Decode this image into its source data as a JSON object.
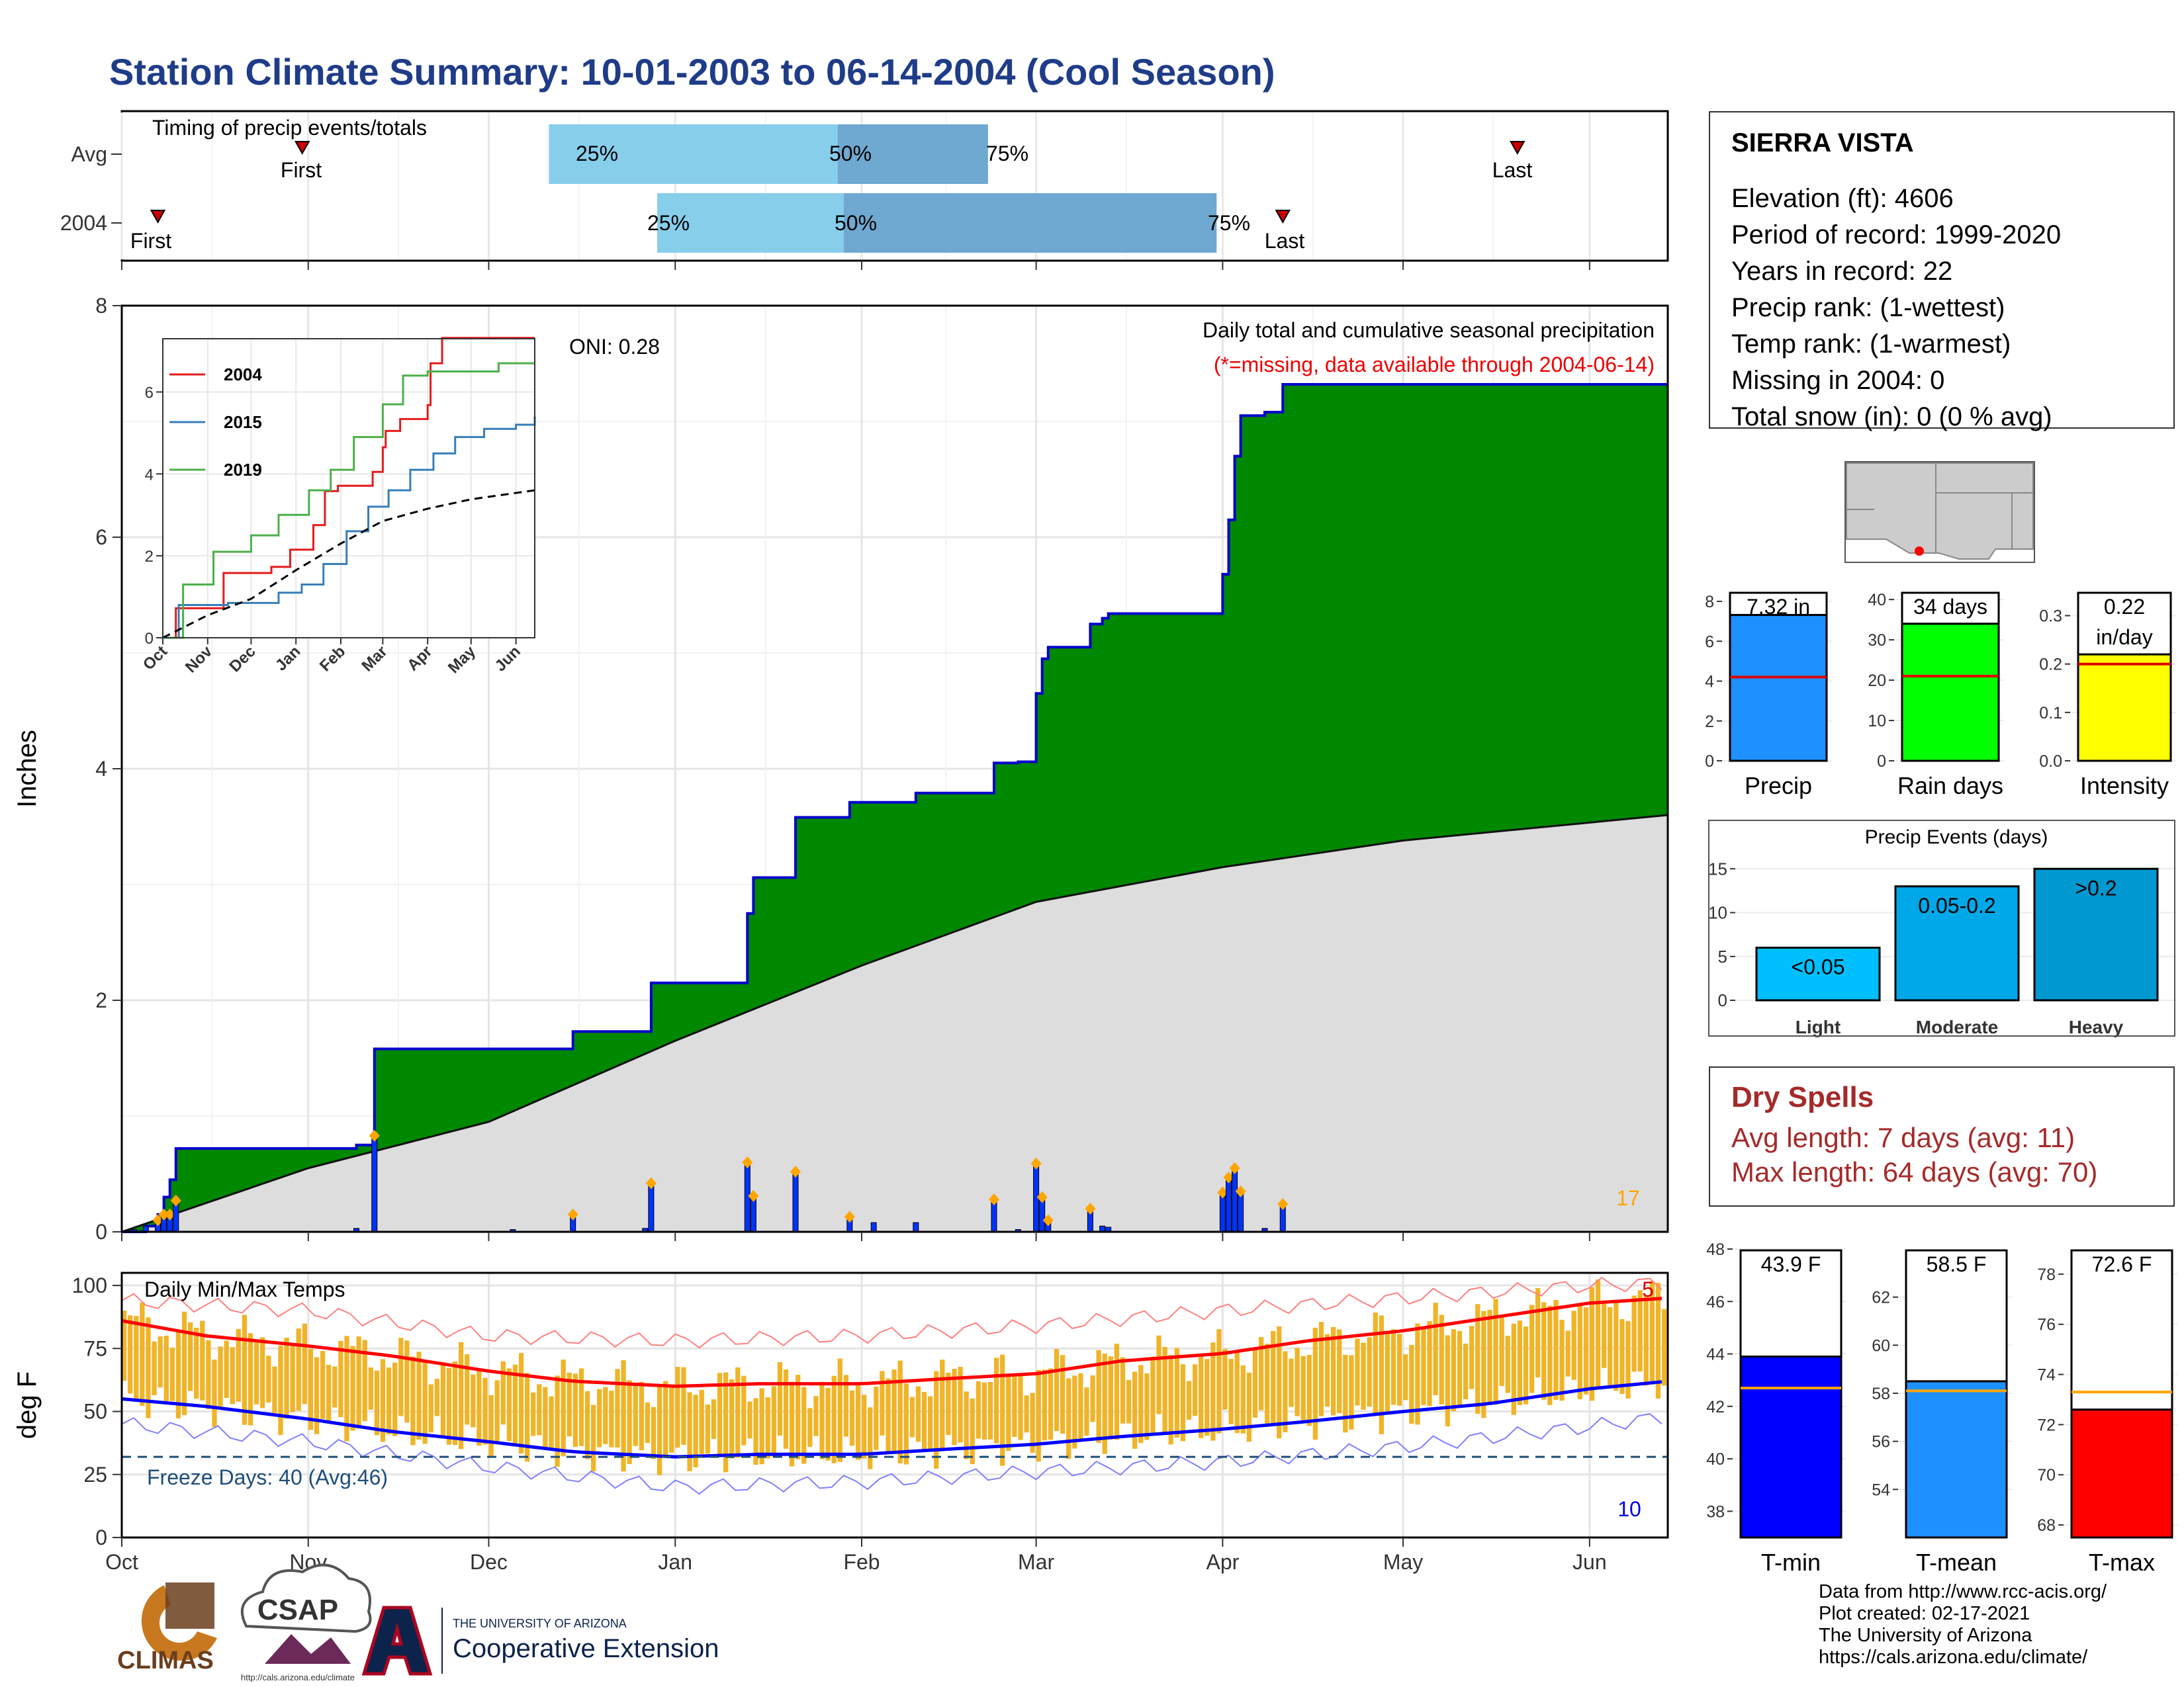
{
  "title": "Station Climate Summary: 10-01-2003 to 06-14-2004 (Cool Season)",
  "colors": {
    "title": "#1f3c88",
    "cumulative_fill": "#008800",
    "cumulative_line": "#0000cc",
    "avg_fill": "#dddddd",
    "bars": "#0033ff",
    "highlight": "#ffa500",
    "tmax": "#ff0000",
    "tmin": "#0000ff",
    "temp_bars": "#f0b428",
    "q_light": "#87ceeb",
    "q_dark": "#6fa8d0"
  },
  "timing": {
    "label": "Timing of precip events/totals",
    "rows": [
      {
        "name": "Avg",
        "first": "First",
        "last": "Last",
        "q25": "25%",
        "q50": "50%",
        "q75": "75%"
      },
      {
        "name": "2004",
        "first": "First",
        "last": "Last",
        "q25": "25%",
        "q50": "50%",
        "q75": "75%"
      }
    ]
  },
  "station": {
    "name": "SIERRA VISTA",
    "lines": [
      "Elevation (ft): 4606",
      "Period of record: 1999-2020",
      "Years in record: 22",
      "Precip rank:  (1-wettest)",
      "Temp rank:  (1-warmest)",
      "Missing in 2004: 0",
      "Total snow (in): 0 (0 % avg)"
    ]
  },
  "main": {
    "oni": "ONI: 0.28",
    "label1": "Daily total and cumulative seasonal precipitation",
    "label2": "(*=missing, data available through 2004-06-14)",
    "ylabel": "Inches",
    "corner_count": "17"
  },
  "temps": {
    "label": "Daily Min/Max Temps",
    "freeze": "Freeze Days: 40 (Avg:46)",
    "ylabel": "deg F",
    "count_top": "5",
    "count_bottom": "10"
  },
  "dry_spells": {
    "title": "Dry Spells",
    "avg": "Avg length: 7 days (avg: 11)",
    "max": "Max length: 64 days (avg: 70)"
  },
  "credits": [
    "Data from http://www.rcc-acis.org/",
    "Plot created: 02-17-2021",
    "The University of Arizona",
    "https://cals.arizona.edu/climate/"
  ],
  "logos": {
    "climas": "CLIMAS",
    "csap": "CSAP",
    "csap_url": "http://cals.arizona.edu/climate",
    "ua_small": "THE UNIVERSITY OF ARIZONA",
    "ua_big": "Cooperative Extension"
  },
  "chart_data": [
    {
      "id": "timing",
      "type": "bar",
      "title": "Timing of precip events/totals",
      "categories": [
        "Avg",
        "2004"
      ],
      "first": [
        "2003-10-31",
        "2003-10-07"
      ],
      "last": [
        "2004-05-20",
        "2004-04-11"
      ],
      "q25": [
        "2003-12-11",
        "2003-12-29"
      ],
      "q50": [
        "2004-01-28",
        "2004-01-29"
      ],
      "q75": [
        "2004-02-22",
        "2004-03-31"
      ]
    },
    {
      "id": "cumulative_precip",
      "type": "area",
      "ylabel": "Inches",
      "ylim": [
        0,
        8
      ],
      "x_ticks": [
        "Oct",
        "Nov",
        "Dec",
        "Jan",
        "Feb",
        "Mar",
        "Apr",
        "May",
        "Jun"
      ],
      "y_ticks": [
        0,
        2,
        4,
        6,
        8
      ],
      "series": [
        {
          "name": "2004",
          "x": [
            "2003-10-01",
            "2003-10-05",
            "2003-10-07",
            "2003-10-08",
            "2003-10-09",
            "2003-10-10",
            "2003-10-15",
            "2003-11-09",
            "2003-11-12",
            "2003-12-05",
            "2003-12-15",
            "2003-12-27",
            "2003-12-28",
            "2004-01-10",
            "2004-01-13",
            "2004-01-14",
            "2004-01-21",
            "2004-01-30",
            "2004-02-03",
            "2004-02-10",
            "2004-02-23",
            "2004-02-27",
            "2004-03-01",
            "2004-03-02",
            "2004-03-03",
            "2004-03-10",
            "2004-03-12",
            "2004-03-13",
            "2004-03-31",
            "2004-04-01",
            "2004-04-02",
            "2004-04-03",
            "2004-04-04",
            "2004-04-05",
            "2004-04-08",
            "2004-04-11",
            "2004-06-14"
          ],
          "y": [
            0,
            0.05,
            0.15,
            0.3,
            0.45,
            0.72,
            0.72,
            0.75,
            1.58,
            1.58,
            1.73,
            1.73,
            2.15,
            2.15,
            2.75,
            3.06,
            3.58,
            3.71,
            3.71,
            3.79,
            4.05,
            4.06,
            4.65,
            4.95,
            5.05,
            5.25,
            5.3,
            5.34,
            5.34,
            5.68,
            6.15,
            6.7,
            7.05,
            7.05,
            7.08,
            7.32,
            7.32
          ]
        },
        {
          "name": "Avg",
          "x": [
            "2003-10-01",
            "2003-11-01",
            "2003-12-01",
            "2004-01-01",
            "2004-02-01",
            "2004-03-01",
            "2004-04-01",
            "2004-05-01",
            "2004-06-14"
          ],
          "y": [
            0,
            0.55,
            0.95,
            1.65,
            2.3,
            2.85,
            3.15,
            3.38,
            3.6
          ]
        },
        {
          "name": "Daily",
          "x": [
            "2003-10-03",
            "2003-10-05",
            "2003-10-07",
            "2003-10-08",
            "2003-10-09",
            "2003-10-10",
            "2003-11-09",
            "2003-11-12",
            "2003-12-05",
            "2003-12-15",
            "2003-12-27",
            "2003-12-28",
            "2004-01-13",
            "2004-01-14",
            "2004-01-21",
            "2004-01-30",
            "2004-02-03",
            "2004-02-10",
            "2004-02-23",
            "2004-02-27",
            "2004-03-01",
            "2004-03-02",
            "2004-03-03",
            "2004-03-10",
            "2004-03-12",
            "2004-03-13",
            "2004-04-01",
            "2004-04-02",
            "2004-04-03",
            "2004-04-04",
            "2004-04-08",
            "2004-04-11"
          ],
          "y": [
            0.02,
            0.05,
            0.1,
            0.15,
            0.15,
            0.27,
            0.03,
            0.83,
            0.02,
            0.15,
            0.03,
            0.42,
            0.6,
            0.31,
            0.52,
            0.13,
            0.08,
            0.08,
            0.28,
            0.02,
            0.59,
            0.3,
            0.1,
            0.2,
            0.05,
            0.04,
            0.34,
            0.47,
            0.55,
            0.35,
            0.03,
            0.24
          ]
        }
      ]
    },
    {
      "id": "inset",
      "type": "line",
      "x_ticks": [
        "Oct",
        "Nov",
        "Dec",
        "Jan",
        "Feb",
        "Mar",
        "Apr",
        "May",
        "Jun"
      ],
      "y_ticks": [
        0,
        2,
        4,
        6
      ],
      "ylim": [
        0,
        7.3
      ],
      "series": [
        {
          "name": "2004",
          "x": [
            "2003-10-01",
            "2003-10-10",
            "2003-11-12",
            "2003-12-15",
            "2003-12-28",
            "2004-01-13",
            "2004-01-21",
            "2004-01-30",
            "2004-02-23",
            "2004-03-01",
            "2004-03-03",
            "2004-03-13",
            "2004-04-01",
            "2004-04-03",
            "2004-04-11",
            "2004-06-14"
          ],
          "y": [
            0,
            0.72,
            1.58,
            1.73,
            2.15,
            2.75,
            3.58,
            3.71,
            4.05,
            4.65,
            5.05,
            5.34,
            5.68,
            6.7,
            7.32,
            7.32
          ]
        },
        {
          "name": "2015",
          "x": [
            "2003-10-01",
            "2003-10-12",
            "2003-11-15",
            "2003-12-20",
            "2004-01-05",
            "2004-01-20",
            "2004-02-05",
            "2004-02-20",
            "2004-03-05",
            "2004-03-20",
            "2004-04-05",
            "2004-04-20",
            "2004-05-10",
            "2004-06-01",
            "2004-06-14"
          ],
          "y": [
            0,
            0.8,
            0.85,
            1.1,
            1.3,
            1.8,
            2.6,
            3.2,
            3.6,
            4.1,
            4.5,
            4.9,
            5.1,
            5.2,
            5.4
          ]
        },
        {
          "name": "2019",
          "x": [
            "2003-10-01",
            "2003-10-15",
            "2003-11-05",
            "2003-12-01",
            "2003-12-20",
            "2004-01-10",
            "2004-01-25",
            "2004-02-10",
            "2004-03-01",
            "2004-03-15",
            "2004-04-01",
            "2004-04-15",
            "2004-05-01",
            "2004-05-20",
            "2004-06-14"
          ],
          "y": [
            0,
            1.3,
            2.1,
            2.5,
            3.0,
            3.6,
            4.1,
            4.9,
            5.7,
            6.4,
            6.5,
            6.5,
            6.5,
            6.7,
            6.7
          ]
        },
        {
          "name": "Avg",
          "x": [
            "2003-10-01",
            "2003-11-01",
            "2003-12-01",
            "2004-01-01",
            "2004-02-01",
            "2004-03-01",
            "2004-04-01",
            "2004-05-01",
            "2004-06-14"
          ],
          "y": [
            0,
            0.55,
            0.95,
            1.65,
            2.3,
            2.85,
            3.15,
            3.38,
            3.6
          ]
        }
      ]
    },
    {
      "id": "temperature",
      "type": "line",
      "title": "Daily Min/Max Temps",
      "ylabel": "deg F",
      "ylim": [
        0,
        105
      ],
      "y_ticks": [
        0,
        25,
        50,
        75,
        100
      ],
      "x_ticks": [
        "Oct",
        "Nov",
        "Dec",
        "Jan",
        "Feb",
        "Mar",
        "Apr",
        "May",
        "Jun"
      ],
      "freeze_threshold": 32,
      "series": [
        {
          "name": "Avg Tmax",
          "x": [
            "2003-10-01",
            "2003-10-15",
            "2003-11-01",
            "2003-11-15",
            "2003-12-01",
            "2003-12-15",
            "2004-01-01",
            "2004-01-15",
            "2004-02-01",
            "2004-02-15",
            "2004-03-01",
            "2004-03-15",
            "2004-04-01",
            "2004-04-15",
            "2004-05-01",
            "2004-05-15",
            "2004-06-01",
            "2004-06-14"
          ],
          "y": [
            86,
            80,
            76,
            72,
            66,
            62,
            60,
            61,
            61,
            63,
            65,
            70,
            73,
            78,
            82,
            87,
            93,
            95
          ]
        },
        {
          "name": "Avg Tmin",
          "x": [
            "2003-10-01",
            "2003-10-15",
            "2003-11-01",
            "2003-11-15",
            "2003-12-01",
            "2003-12-15",
            "2004-01-01",
            "2004-01-15",
            "2004-02-01",
            "2004-02-15",
            "2004-03-01",
            "2004-03-15",
            "2004-04-01",
            "2004-04-15",
            "2004-05-01",
            "2004-05-15",
            "2004-06-01",
            "2004-06-14"
          ],
          "y": [
            55,
            52,
            47,
            42,
            38,
            34,
            32,
            33,
            33,
            35,
            37,
            40,
            43,
            46,
            50,
            53,
            59,
            62
          ]
        },
        {
          "name": "Record Tmax",
          "x": [
            "2003-10-01",
            "2003-11-01",
            "2003-12-01",
            "2004-01-01",
            "2004-02-01",
            "2004-03-01",
            "2004-04-01",
            "2004-05-01",
            "2004-06-01",
            "2004-06-14"
          ],
          "y": [
            94,
            90,
            80,
            78,
            80,
            84,
            90,
            95,
            100,
            101
          ]
        },
        {
          "name": "Record Tmin",
          "x": [
            "2003-10-01",
            "2003-11-01",
            "2003-12-01",
            "2004-01-01",
            "2004-02-01",
            "2004-03-01",
            "2004-04-01",
            "2004-05-01",
            "2004-06-01",
            "2004-06-14"
          ],
          "y": [
            45,
            38,
            28,
            20,
            22,
            26,
            30,
            36,
            44,
            48
          ]
        }
      ]
    },
    {
      "id": "precip_total",
      "type": "bar",
      "categories": [
        "Precip"
      ],
      "values": [
        7.32
      ],
      "label": "7.32 in",
      "average": 4.2,
      "ylim": [
        0,
        8.5
      ],
      "y_ticks": [
        0,
        2,
        4,
        6,
        8
      ]
    },
    {
      "id": "rain_days",
      "type": "bar",
      "categories": [
        "Rain days"
      ],
      "values": [
        34
      ],
      "label": "34 days",
      "average": 21,
      "ylim": [
        0,
        42
      ],
      "y_ticks": [
        0,
        10,
        20,
        30,
        40
      ]
    },
    {
      "id": "intensity",
      "type": "bar",
      "categories": [
        "Intensity"
      ],
      "values": [
        0.22
      ],
      "label": [
        "0.22",
        "in/day"
      ],
      "average": 0.2,
      "ylim": [
        0,
        0.35
      ],
      "y_ticks": [
        0.0,
        0.1,
        0.2,
        0.3
      ]
    },
    {
      "id": "precip_events",
      "type": "bar",
      "title": "Precip Events (days)",
      "categories": [
        "Light",
        "Moderate",
        "Heavy"
      ],
      "values": [
        6,
        13,
        15
      ],
      "labels": [
        "<0.05",
        "0.05-0.2",
        ">0.2"
      ],
      "ylim": [
        0,
        16
      ],
      "y_ticks": [
        0,
        5,
        10,
        15
      ]
    },
    {
      "id": "tmin",
      "type": "bar",
      "categories": [
        "T-min"
      ],
      "values": [
        43.9
      ],
      "label": "43.9 F",
      "average": 42.7,
      "ylim": [
        37,
        48
      ],
      "y_ticks": [
        38,
        40,
        42,
        44,
        46,
        48
      ]
    },
    {
      "id": "tmean",
      "type": "bar",
      "categories": [
        "T-mean"
      ],
      "values": [
        58.5
      ],
      "label": "58.5 F",
      "average": 58.1,
      "ylim": [
        52,
        64
      ],
      "y_ticks": [
        54,
        56,
        58,
        60,
        62
      ]
    },
    {
      "id": "tmax",
      "type": "bar",
      "categories": [
        "T-max"
      ],
      "values": [
        72.6
      ],
      "label": "72.6 F",
      "average": 73.3,
      "ylim": [
        67.5,
        79
      ],
      "y_ticks": [
        68,
        70,
        72,
        74,
        76,
        78
      ]
    }
  ]
}
